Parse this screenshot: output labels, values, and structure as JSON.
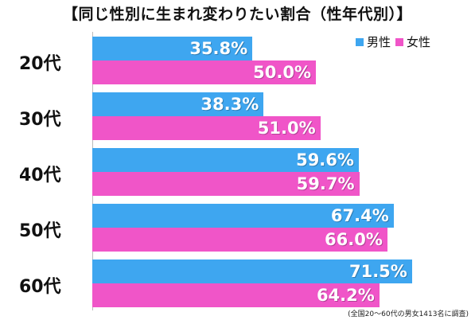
{
  "chart_data": {
    "type": "bar",
    "orientation": "horizontal",
    "title": "【同じ性別に生まれ変わりたい割合（性年代別）】",
    "categories": [
      "20代",
      "30代",
      "40代",
      "50代",
      "60代"
    ],
    "series": [
      {
        "name": "男性",
        "color": "#3ea6f0",
        "values": [
          35.8,
          38.3,
          59.6,
          67.4,
          71.5
        ]
      },
      {
        "name": "女性",
        "color": "#f055c8",
        "values": [
          50.0,
          51.0,
          59.7,
          66.0,
          64.2
        ]
      }
    ],
    "value_labels": [
      [
        "35.8%",
        "38.3%",
        "59.6%",
        "67.4%",
        "71.5%"
      ],
      [
        "50.0%",
        "51.0%",
        "59.7%",
        "66.0%",
        "64.2%"
      ]
    ],
    "xlim": [
      0,
      100
    ],
    "legend_position": "top-right",
    "grid": false,
    "note": "(全国20～60代の男女1413名に調査)"
  }
}
